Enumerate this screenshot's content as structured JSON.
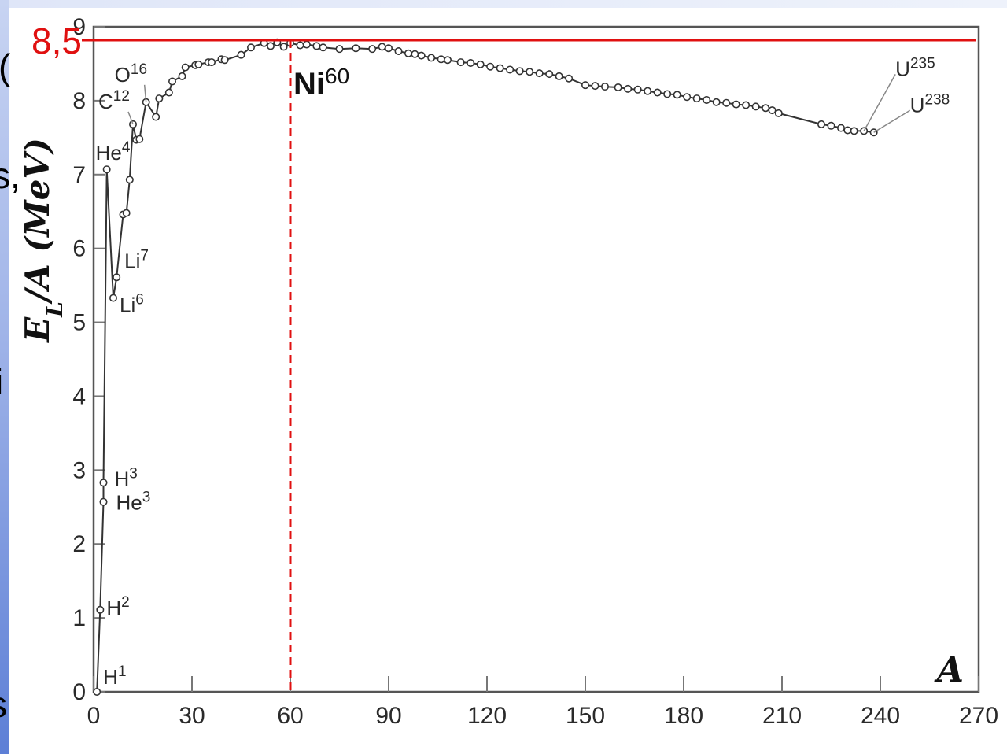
{
  "chart_data": {
    "type": "line",
    "title": "",
    "xlabel": "A",
    "ylabel": "E_L/A (MeV)",
    "ylabel_parts": {
      "main": "E",
      "sub": "L",
      "rest": "/A (MeV)"
    },
    "xlim": [
      0,
      270
    ],
    "ylim": [
      0,
      9
    ],
    "x_ticks": [
      0,
      30,
      60,
      90,
      120,
      150,
      180,
      210,
      240,
      270
    ],
    "y_ticks": [
      0,
      1,
      2,
      3,
      4,
      5,
      6,
      7,
      8,
      9
    ],
    "grid": false,
    "series": [
      {
        "points": [
          [
            1,
            0
          ],
          [
            2,
            1.11
          ],
          [
            3,
            2.57
          ],
          [
            3,
            2.83
          ],
          [
            4,
            7.07
          ],
          [
            6,
            5.33
          ],
          [
            7,
            5.61
          ],
          [
            9,
            6.46
          ],
          [
            10,
            6.48
          ],
          [
            11,
            6.93
          ],
          [
            12,
            7.68
          ],
          [
            13,
            7.47
          ],
          [
            14,
            7.48
          ],
          [
            16,
            7.98
          ],
          [
            19,
            7.78
          ],
          [
            20,
            8.03
          ],
          [
            23,
            8.11
          ],
          [
            24,
            8.26
          ],
          [
            27,
            8.33
          ],
          [
            28,
            8.45
          ],
          [
            31,
            8.48
          ],
          [
            32,
            8.49
          ],
          [
            35,
            8.52
          ],
          [
            36,
            8.52
          ],
          [
            39,
            8.56
          ],
          [
            40,
            8.55
          ],
          [
            45,
            8.62
          ],
          [
            48,
            8.72
          ],
          [
            52,
            8.78
          ],
          [
            54,
            8.74
          ],
          [
            56,
            8.79
          ],
          [
            58,
            8.73
          ],
          [
            60,
            8.78
          ],
          [
            63,
            8.75
          ],
          [
            65,
            8.76
          ],
          [
            68,
            8.74
          ],
          [
            70,
            8.72
          ],
          [
            75,
            8.7
          ],
          [
            80,
            8.71
          ],
          [
            85,
            8.7
          ],
          [
            88,
            8.73
          ],
          [
            90,
            8.71
          ],
          [
            93,
            8.67
          ],
          [
            96,
            8.64
          ],
          [
            98,
            8.63
          ],
          [
            100,
            8.61
          ],
          [
            103,
            8.58
          ],
          [
            106,
            8.56
          ],
          [
            108,
            8.55
          ],
          [
            112,
            8.52
          ],
          [
            115,
            8.51
          ],
          [
            118,
            8.49
          ],
          [
            121,
            8.46
          ],
          [
            124,
            8.44
          ],
          [
            127,
            8.42
          ],
          [
            130,
            8.4
          ],
          [
            133,
            8.39
          ],
          [
            136,
            8.37
          ],
          [
            139,
            8.36
          ],
          [
            142,
            8.33
          ],
          [
            145,
            8.3
          ],
          [
            150,
            8.21
          ],
          [
            153,
            8.2
          ],
          [
            156,
            8.19
          ],
          [
            160,
            8.18
          ],
          [
            163,
            8.16
          ],
          [
            166,
            8.15
          ],
          [
            169,
            8.13
          ],
          [
            172,
            8.11
          ],
          [
            175,
            8.09
          ],
          [
            178,
            8.08
          ],
          [
            181,
            8.05
          ],
          [
            184,
            8.03
          ],
          [
            187,
            8.01
          ],
          [
            190,
            7.98
          ],
          [
            193,
            7.97
          ],
          [
            196,
            7.95
          ],
          [
            199,
            7.94
          ],
          [
            202,
            7.92
          ],
          [
            205,
            7.9
          ],
          [
            207,
            7.87
          ],
          [
            209,
            7.83
          ],
          [
            222,
            7.68
          ],
          [
            225,
            7.66
          ],
          [
            228,
            7.63
          ],
          [
            230,
            7.6
          ],
          [
            232,
            7.59
          ],
          [
            235,
            7.59
          ],
          [
            238,
            7.57
          ]
        ]
      }
    ],
    "point_labels": [
      {
        "base": "H",
        "sup": "1",
        "x": 1,
        "y": 0
      },
      {
        "base": "H",
        "sup": "2",
        "x": 2,
        "y": 1.11
      },
      {
        "base": "He",
        "sup": "3",
        "x": 3,
        "y": 2.57
      },
      {
        "base": "H",
        "sup": "3",
        "x": 3,
        "y": 2.83
      },
      {
        "base": "He",
        "sup": "4",
        "x": 4,
        "y": 7.07
      },
      {
        "base": "Li",
        "sup": "6",
        "x": 6,
        "y": 5.33
      },
      {
        "base": "Li",
        "sup": "7",
        "x": 7,
        "y": 5.61
      },
      {
        "base": "C",
        "sup": "12",
        "x": 12,
        "y": 7.68
      },
      {
        "base": "O",
        "sup": "16",
        "x": 16,
        "y": 7.98
      },
      {
        "base": "U",
        "sup": "235",
        "x": 235,
        "y": 7.59
      },
      {
        "base": "U",
        "sup": "238",
        "x": 238,
        "y": 7.57
      }
    ],
    "reference_lines": [
      {
        "orientation": "horizontal",
        "value": 8.5,
        "label": "8,5",
        "color": "#e01010",
        "style": "solid"
      },
      {
        "orientation": "vertical",
        "value": 60,
        "label": "Ni",
        "label_sup": "60",
        "color": "#e01010",
        "style": "dashed"
      }
    ],
    "colors": {
      "line": "#333333",
      "marker_fill": "#ffffff",
      "reference": "#e01010",
      "axis_text": "#2a2a2a"
    }
  },
  "edge_text": [
    "(",
    "s,",
    "i",
    "s"
  ]
}
